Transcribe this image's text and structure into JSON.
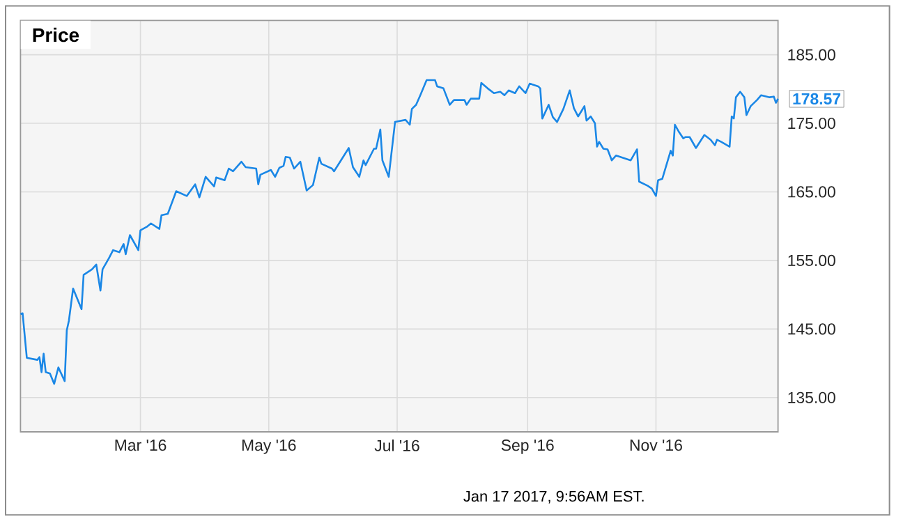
{
  "chart_data": {
    "type": "line",
    "title": "Price",
    "color": "#1a87e6",
    "grid": true,
    "x": [
      "2016-01-04",
      "2016-01-05",
      "2016-01-07",
      "2016-01-12",
      "2016-01-13",
      "2016-01-14",
      "2016-01-15",
      "2016-01-16",
      "2016-01-18",
      "2016-01-20",
      "2016-01-22",
      "2016-01-25",
      "2016-01-26",
      "2016-01-27",
      "2016-01-29",
      "2016-02-02",
      "2016-02-03",
      "2016-02-07",
      "2016-02-09",
      "2016-02-11",
      "2016-02-12",
      "2016-02-15",
      "2016-02-17",
      "2016-02-20",
      "2016-02-22",
      "2016-02-23",
      "2016-02-25",
      "2016-02-29",
      "2016-03-01",
      "2016-03-04",
      "2016-03-06",
      "2016-03-10",
      "2016-03-11",
      "2016-03-14",
      "2016-03-18",
      "2016-03-23",
      "2016-03-27",
      "2016-03-29",
      "2016-04-01",
      "2016-04-05",
      "2016-04-06",
      "2016-04-10",
      "2016-04-12",
      "2016-04-14",
      "2016-04-18",
      "2016-04-20",
      "2016-04-25",
      "2016-04-26",
      "2016-04-27",
      "2016-05-02",
      "2016-05-04",
      "2016-05-06",
      "2016-05-08",
      "2016-05-09",
      "2016-05-11",
      "2016-05-13",
      "2016-05-16",
      "2016-05-19",
      "2016-05-22",
      "2016-05-25",
      "2016-05-26",
      "2016-05-31",
      "2016-06-01",
      "2016-06-08",
      "2016-06-10",
      "2016-06-13",
      "2016-06-15",
      "2016-06-16",
      "2016-06-20",
      "2016-06-21",
      "2016-06-23",
      "2016-06-24",
      "2016-06-27",
      "2016-06-30",
      "2016-07-05",
      "2016-07-07",
      "2016-07-08",
      "2016-07-10",
      "2016-07-12",
      "2016-07-15",
      "2016-07-19",
      "2016-07-20",
      "2016-07-23",
      "2016-07-26",
      "2016-07-28",
      "2016-08-02",
      "2016-08-03",
      "2016-08-05",
      "2016-08-09",
      "2016-08-10",
      "2016-08-13",
      "2016-08-16",
      "2016-08-19",
      "2016-08-21",
      "2016-08-23",
      "2016-08-26",
      "2016-08-28",
      "2016-08-31",
      "2016-09-02",
      "2016-09-06",
      "2016-09-07",
      "2016-09-08",
      "2016-09-11",
      "2016-09-13",
      "2016-09-15",
      "2016-09-18",
      "2016-09-21",
      "2016-09-23",
      "2016-09-25",
      "2016-09-28",
      "2016-09-29",
      "2016-10-01",
      "2016-10-03",
      "2016-10-04",
      "2016-10-05",
      "2016-10-07",
      "2016-10-09",
      "2016-10-11",
      "2016-10-13",
      "2016-10-20",
      "2016-10-23",
      "2016-10-24",
      "2016-10-28",
      "2016-10-30",
      "2016-11-01",
      "2016-11-02",
      "2016-11-04",
      "2016-11-08",
      "2016-11-09",
      "2016-11-10",
      "2016-11-12",
      "2016-11-14",
      "2016-11-15",
      "2016-11-17",
      "2016-11-20",
      "2016-11-24",
      "2016-11-27",
      "2016-11-29",
      "2016-11-30",
      "2016-12-02",
      "2016-12-06",
      "2016-12-07",
      "2016-12-08",
      "2016-12-09",
      "2016-12-11",
      "2016-12-13",
      "2016-12-14",
      "2016-12-16",
      "2016-12-19",
      "2016-12-21",
      "2016-12-25",
      "2016-12-27",
      "2016-12-28",
      "2016-12-29"
    ],
    "values": [
      147.2,
      147.3,
      140.8,
      140.5,
      140.9,
      138.7,
      141.4,
      138.7,
      138.5,
      137.0,
      139.4,
      137.4,
      144.8,
      146.2,
      150.9,
      147.9,
      152.9,
      153.7,
      154.4,
      150.6,
      153.7,
      155.3,
      156.5,
      156.2,
      157.4,
      155.9,
      158.7,
      156.5,
      159.4,
      159.9,
      160.4,
      159.6,
      161.6,
      161.8,
      165.1,
      164.4,
      166.1,
      164.2,
      167.2,
      165.8,
      167.1,
      166.7,
      168.4,
      168.0,
      169.4,
      168.6,
      168.4,
      166.1,
      167.5,
      168.2,
      167.2,
      168.5,
      168.8,
      170.1,
      170.0,
      168.4,
      169.4,
      165.2,
      166.0,
      170.0,
      169.1,
      168.4,
      168.0,
      171.4,
      168.6,
      167.2,
      169.6,
      168.9,
      171.3,
      171.3,
      174.1,
      169.6,
      167.2,
      175.2,
      175.5,
      174.8,
      177.1,
      177.7,
      179.1,
      181.3,
      181.3,
      180.4,
      180.1,
      177.7,
      178.4,
      178.4,
      177.7,
      178.6,
      178.6,
      180.9,
      180.1,
      179.4,
      179.6,
      179.1,
      179.8,
      179.4,
      180.4,
      179.4,
      180.8,
      180.4,
      180.1,
      175.7,
      177.7,
      175.9,
      175.2,
      177.1,
      179.8,
      177.2,
      176.0,
      177.5,
      175.4,
      176.0,
      175.0,
      171.6,
      172.3,
      171.3,
      171.2,
      169.6,
      170.3,
      169.6,
      171.2,
      166.5,
      165.9,
      165.5,
      164.4,
      166.7,
      166.9,
      171.0,
      170.3,
      174.8,
      173.7,
      172.8,
      173.0,
      173.0,
      171.4,
      173.3,
      172.6,
      171.8,
      172.6,
      172.3,
      171.6,
      176.0,
      175.7,
      178.8,
      179.6,
      178.8,
      176.2,
      177.5,
      178.4,
      179.1,
      178.8,
      178.9,
      178.0,
      178.57
    ],
    "xlim": [
      "2016-01-04",
      "2016-12-29"
    ],
    "xticks": [
      {
        "value": "2016-03-01",
        "label": "Mar '16"
      },
      {
        "value": "2016-05-01",
        "label": "May '16"
      },
      {
        "value": "2016-07-01",
        "label": "Jul '16"
      },
      {
        "value": "2016-09-01",
        "label": "Sep '16"
      },
      {
        "value": "2016-11-01",
        "label": "Nov '16"
      }
    ],
    "ylim": [
      130,
      190
    ],
    "yticks": [
      {
        "value": 135,
        "label": "135.00"
      },
      {
        "value": 145,
        "label": "145.00"
      },
      {
        "value": 155,
        "label": "155.00"
      },
      {
        "value": 165,
        "label": "165.00"
      },
      {
        "value": 175,
        "label": "175.00"
      },
      {
        "value": 185,
        "label": "185.00"
      }
    ],
    "annotations": [
      {
        "text": "178.57",
        "x": "2016-12-29",
        "y": 178.57
      },
      "Jan 17 2017, 9:56AM EST."
    ]
  }
}
